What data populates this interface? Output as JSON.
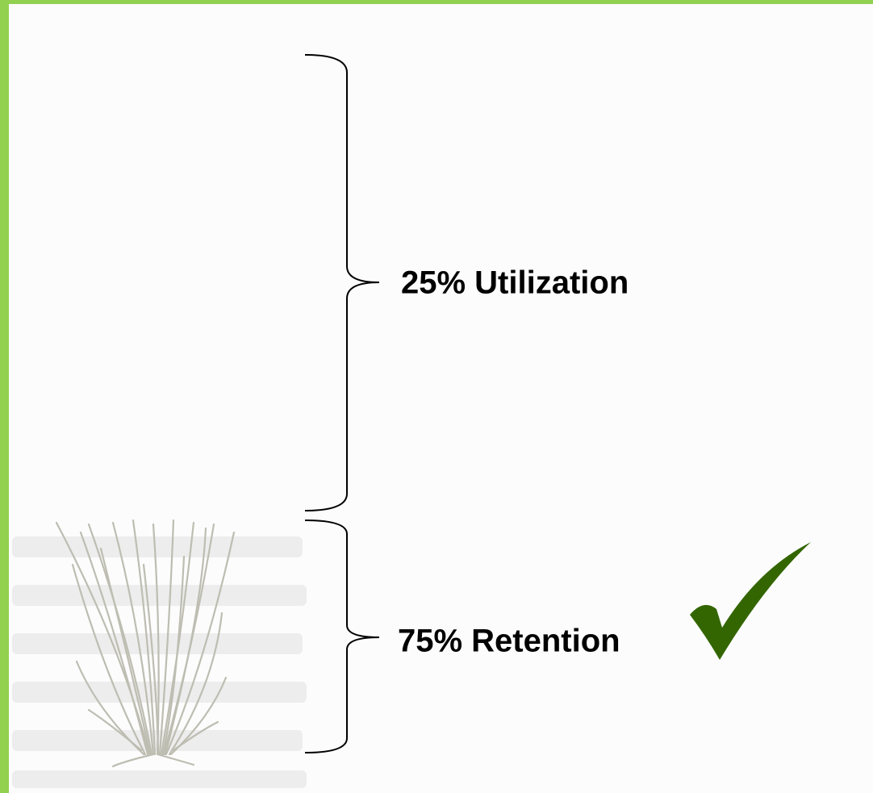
{
  "labels": {
    "utilization": "25% Utilization",
    "retention": "75% Retention"
  }
}
